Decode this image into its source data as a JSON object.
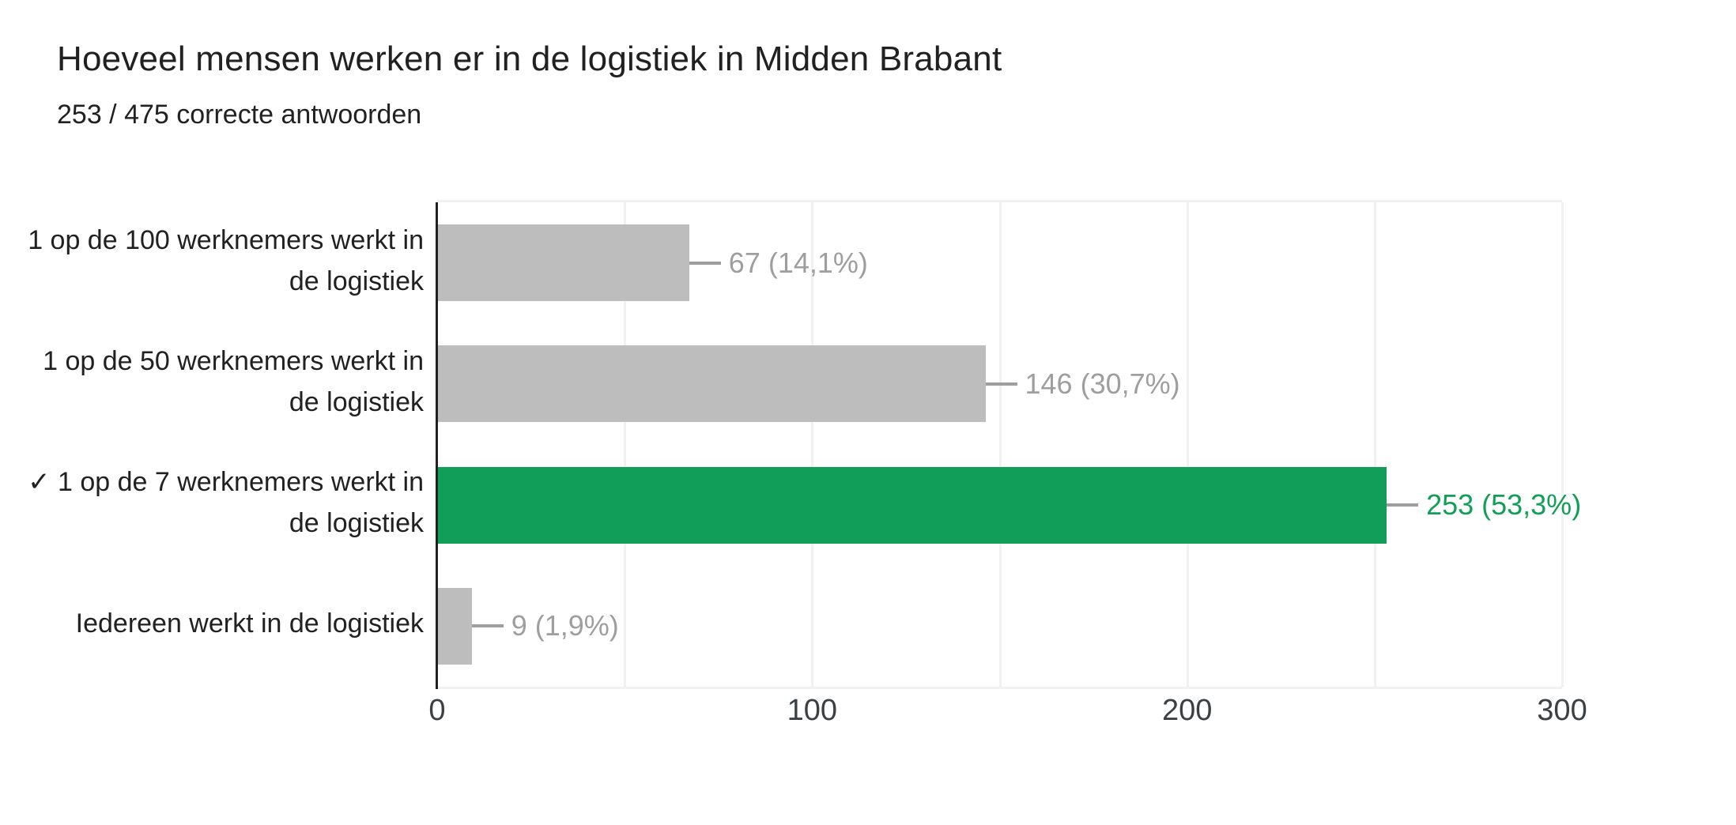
{
  "header": {
    "title": "Hoeveel mensen werken er in de logistiek in Midden Brabant",
    "subtitle": "253 / 475 correcte antwoorden"
  },
  "chart_data": {
    "type": "bar",
    "orientation": "horizontal",
    "title": "Hoeveel mensen werken er in de logistiek in Midden Brabant",
    "subtitle": "253 / 475 correcte antwoorden",
    "categories": [
      [
        "1 op de 100 werknemers werkt in",
        "de logistiek"
      ],
      [
        "1 op de 50 werknemers werkt in",
        "de logistiek"
      ],
      [
        "✓ 1 op de 7 werknemers werkt in",
        "de logistiek"
      ],
      [
        "Iedereen werkt in de logistiek"
      ]
    ],
    "values": [
      67,
      146,
      253,
      9
    ],
    "value_labels": [
      "67 (14,1%)",
      "146 (30,7%)",
      "253 (53,3%)",
      "9 (1,9%)"
    ],
    "correct_index": 2,
    "xlim": [
      0,
      300
    ],
    "x_ticks": [
      "0",
      "100",
      "200",
      "300"
    ],
    "x_tick_values": [
      0,
      100,
      200,
      300
    ],
    "grid_interval": 50,
    "grid_on": true,
    "legend": "none",
    "colors": {
      "bar_default": "#bdbdbd",
      "bar_correct": "#109e58",
      "value_label_default": "#9e9e9e",
      "value_label_correct": "#109e58",
      "connector": "#9e9e9e",
      "gridline": "#f1f1f1",
      "axis_line": "#212121",
      "tick_label": "#3c4043",
      "category_label": "#212121"
    }
  }
}
